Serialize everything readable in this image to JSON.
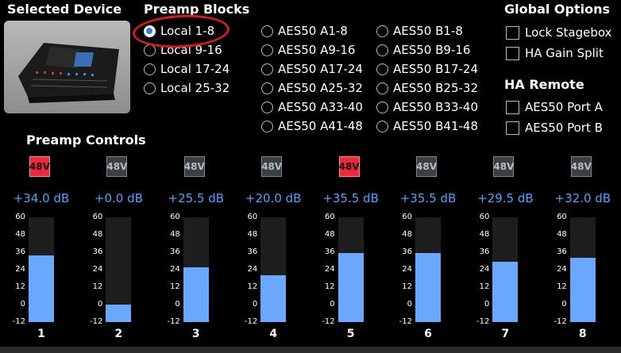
{
  "selected_device": {
    "heading": "Selected Device"
  },
  "preamp_blocks": {
    "heading": "Preamp Blocks",
    "local": [
      {
        "label": "Local 1-8",
        "selected": true
      },
      {
        "label": "Local 9-16",
        "selected": false
      },
      {
        "label": "Local 17-24",
        "selected": false
      },
      {
        "label": "Local 25-32",
        "selected": false
      }
    ],
    "aes50_a": [
      "AES50 A1-8",
      "AES50 A9-16",
      "AES50 A17-24",
      "AES50 A25-32",
      "AES50 A33-40",
      "AES50 A41-48"
    ],
    "aes50_b": [
      "AES50 B1-8",
      "AES50 B9-16",
      "AES50 B17-24",
      "AES50 B25-32",
      "AES50 B33-40",
      "AES50 B41-48"
    ]
  },
  "global_options": {
    "heading": "Global Options",
    "items": [
      {
        "label": "Lock Stagebox",
        "checked": false
      },
      {
        "label": "HA Gain Split",
        "checked": false
      }
    ]
  },
  "ha_remote": {
    "heading": "HA Remote",
    "items": [
      {
        "label": "AES50 Port A",
        "checked": false
      },
      {
        "label": "AES50 Port B",
        "checked": false
      }
    ]
  },
  "preamp_controls": {
    "heading": "Preamp Controls",
    "scale": [
      "60",
      "48",
      "36",
      "24",
      "12",
      "0",
      "-12"
    ],
    "scale_min": -12,
    "scale_max": 60,
    "channels": [
      {
        "number": "1",
        "phantom_label": "48V",
        "phantom_on": true,
        "gain": "+34.0 dB",
        "gain_value": 34.0
      },
      {
        "number": "2",
        "phantom_label": "48V",
        "phantom_on": false,
        "gain": "+0.0 dB",
        "gain_value": 0.0
      },
      {
        "number": "3",
        "phantom_label": "48V",
        "phantom_on": false,
        "gain": "+25.5 dB",
        "gain_value": 25.5
      },
      {
        "number": "4",
        "phantom_label": "48V",
        "phantom_on": false,
        "gain": "+20.0 dB",
        "gain_value": 20.0
      },
      {
        "number": "5",
        "phantom_label": "48V",
        "phantom_on": true,
        "gain": "+35.5 dB",
        "gain_value": 35.5
      },
      {
        "number": "6",
        "phantom_label": "48V",
        "phantom_on": false,
        "gain": "+35.5 dB",
        "gain_value": 35.5
      },
      {
        "number": "7",
        "phantom_label": "48V",
        "phantom_on": false,
        "gain": "+29.5 dB",
        "gain_value": 29.5
      },
      {
        "number": "8",
        "phantom_label": "48V",
        "phantom_on": false,
        "gain": "+32.0 dB",
        "gain_value": 32.0
      }
    ]
  },
  "colors": {
    "accent_blue": "#4aa3ff",
    "fader_fill": "#6aa7ff",
    "phantom_on": "#f0283b",
    "highlight_ring": "#d6191c"
  }
}
